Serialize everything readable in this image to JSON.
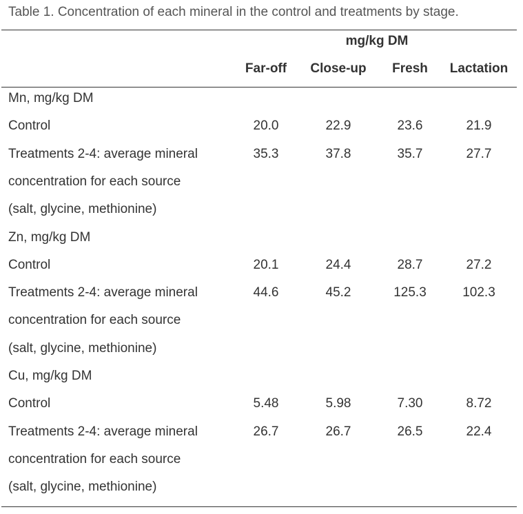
{
  "caption": "Table 1. Concentration of each mineral in the control and treatments by stage.",
  "units_header": "mg/kg DM",
  "columns": [
    "Far-off",
    "Close-up",
    "Fresh",
    "Lactation"
  ],
  "sections": [
    {
      "heading": "Mn, mg/kg DM",
      "control_label": "Control",
      "control_values": [
        "20.0",
        "22.9",
        "23.6",
        "21.9"
      ],
      "treatment_lines": [
        "Treatments 2-4: average mineral",
        "concentration for each source",
        "(salt, glycine, methionine)"
      ],
      "treatment_values": [
        "35.3",
        "37.8",
        "35.7",
        "27.7"
      ]
    },
    {
      "heading": "Zn, mg/kg DM",
      "control_label": "Control",
      "control_values": [
        "20.1",
        "24.4",
        "28.7",
        "27.2"
      ],
      "treatment_lines": [
        "Treatments 2-4: average mineral",
        "concentration for each source",
        "(salt, glycine, methionine)"
      ],
      "treatment_values": [
        "44.6",
        "45.2",
        "125.3",
        "102.3"
      ]
    },
    {
      "heading": "Cu, mg/kg DM",
      "control_label": "Control",
      "control_values": [
        "5.48",
        "5.98",
        "7.30",
        "8.72"
      ],
      "treatment_lines": [
        "Treatments 2-4: average mineral",
        "concentration for each source",
        "(salt, glycine, methionine)"
      ],
      "treatment_values": [
        "26.7",
        "26.7",
        "26.5",
        "22.4"
      ]
    }
  ]
}
